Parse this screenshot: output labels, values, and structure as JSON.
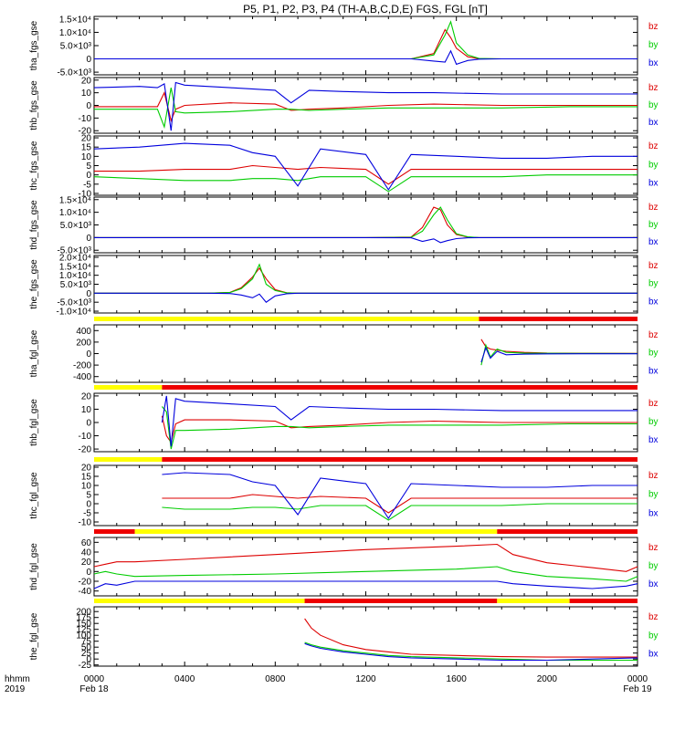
{
  "title": "P5, P1, P2, P3, P4 (TH-A,B,C,D,E) FGS, FGL [nT]",
  "colors": {
    "bx": "#0000dd",
    "by": "#00cc00",
    "bz": "#dd0000",
    "quality_good": "#ffff00",
    "quality_bad": "#ee0000"
  },
  "legend_labels": [
    "bz",
    "by",
    "bx"
  ],
  "x_axis": {
    "tick_labels": [
      "0000",
      "0400",
      "0800",
      "1200",
      "1600",
      "2000",
      "0000"
    ],
    "date_labels": [
      "Feb 18",
      "Feb 19"
    ],
    "row_label_1": "hhmm",
    "row_label_2": "2019"
  },
  "chart_data": [
    {
      "type": "line",
      "ylabel": "tha_fgs_gse",
      "ylim": [
        -6000,
        16000
      ],
      "yticks": [
        -5000,
        0,
        5000,
        10000,
        15000
      ],
      "ytick_labels": [
        "-5.0×10³",
        "0",
        "5.0×10³",
        "1.0×10⁴",
        "1.5×10⁴"
      ],
      "x": [
        0,
        4,
        8,
        12,
        14,
        15,
        15.5,
        15.75,
        16,
        16.5,
        17,
        18,
        24
      ],
      "series": [
        {
          "name": "bz",
          "values": [
            0,
            0,
            0,
            0,
            0,
            2000,
            11000,
            8000,
            4000,
            800,
            100,
            0,
            0
          ]
        },
        {
          "name": "by",
          "values": [
            0,
            0,
            0,
            0,
            0,
            1500,
            9000,
            14000,
            6000,
            1500,
            200,
            0,
            0
          ]
        },
        {
          "name": "bx",
          "values": [
            0,
            0,
            0,
            0,
            0,
            -800,
            -1200,
            3000,
            -2000,
            -600,
            -100,
            0,
            0
          ]
        }
      ]
    },
    {
      "type": "line",
      "ylabel": "thb_fgs_gse",
      "ylim": [
        -22,
        22
      ],
      "yticks": [
        -20,
        -10,
        0,
        10,
        20
      ],
      "ytick_labels": [
        "-20",
        "-10",
        "0",
        "10",
        "20"
      ],
      "x": [
        0,
        2,
        2.8,
        3.1,
        3.4,
        3.6,
        4,
        6,
        8,
        8.7,
        9.5,
        11,
        13,
        15,
        18,
        21,
        24
      ],
      "series": [
        {
          "name": "bz",
          "values": [
            -1,
            -1,
            -1,
            10,
            -12,
            -3,
            0,
            2,
            1,
            -4,
            -3,
            -2,
            0,
            1,
            0,
            0,
            0
          ]
        },
        {
          "name": "by",
          "values": [
            -3,
            -3,
            -3,
            -17,
            14,
            -5,
            -6,
            -5,
            -3,
            -3,
            -4,
            -3,
            -2,
            -2,
            -2,
            -1,
            -1
          ]
        },
        {
          "name": "bx",
          "values": [
            14,
            15,
            14,
            17,
            -20,
            18,
            16,
            14,
            12,
            2,
            12,
            11,
            10,
            10,
            9,
            9,
            9
          ]
        }
      ]
    },
    {
      "type": "line",
      "ylabel": "thc_fgs_gse",
      "ylim": [
        -11,
        21
      ],
      "yticks": [
        -10,
        -5,
        0,
        5,
        10,
        15,
        20
      ],
      "ytick_labels": [
        "-10",
        "-5",
        "0",
        "5",
        "10",
        "15",
        "20"
      ],
      "x": [
        0,
        2,
        4,
        6,
        7,
        8,
        9,
        10,
        12,
        13,
        14,
        16,
        18,
        20,
        22,
        24
      ],
      "series": [
        {
          "name": "bz",
          "values": [
            2,
            2,
            3,
            3,
            5,
            4,
            3,
            4,
            3,
            -5,
            3,
            3,
            3,
            3,
            3,
            3
          ]
        },
        {
          "name": "by",
          "values": [
            -1,
            -2,
            -3,
            -3,
            -2,
            -2,
            -3,
            -1,
            -1,
            -9,
            -1,
            -1,
            -1,
            0,
            0,
            0
          ]
        },
        {
          "name": "bx",
          "values": [
            14,
            15,
            17,
            16,
            12,
            10,
            -6,
            14,
            11,
            -8,
            11,
            10,
            9,
            9,
            10,
            10
          ]
        }
      ]
    },
    {
      "type": "line",
      "ylabel": "thd_fgs_gse",
      "ylim": [
        -6000,
        16000
      ],
      "yticks": [
        -5000,
        0,
        5000,
        10000,
        15000
      ],
      "ytick_labels": [
        "-5.0×10³",
        "0",
        "5.0×10³",
        "1.0×10⁴",
        "1.5×10⁴"
      ],
      "x": [
        0,
        4,
        8,
        12,
        14,
        14.5,
        15,
        15.3,
        15.6,
        16,
        16.5,
        17,
        24
      ],
      "series": [
        {
          "name": "bz",
          "values": [
            0,
            0,
            0,
            0,
            200,
            4000,
            12000,
            11000,
            5000,
            1200,
            200,
            0,
            0
          ]
        },
        {
          "name": "by",
          "values": [
            0,
            0,
            0,
            0,
            100,
            2500,
            9000,
            12000,
            7000,
            1500,
            300,
            0,
            0
          ]
        },
        {
          "name": "bx",
          "values": [
            0,
            0,
            0,
            0,
            -100,
            -1500,
            -500,
            -2000,
            -1200,
            -400,
            -100,
            0,
            0
          ]
        }
      ]
    },
    {
      "type": "line",
      "ylabel": "the_fgs_gse",
      "ylim": [
        -11000,
        21000
      ],
      "yticks": [
        -10000,
        -5000,
        0,
        5000,
        10000,
        15000,
        20000
      ],
      "ytick_labels": [
        "-1.0×10⁴",
        "-5.0×10³",
        "0",
        "5.0×10³",
        "1.0×10⁴",
        "1.5×10⁴",
        "2.0×10⁴"
      ],
      "x": [
        0,
        4,
        5,
        6,
        6.5,
        7,
        7.3,
        7.6,
        8,
        8.5,
        9,
        24
      ],
      "series": [
        {
          "name": "bz",
          "values": [
            0,
            0,
            0,
            500,
            3000,
            9000,
            14000,
            8000,
            2000,
            300,
            0,
            0
          ]
        },
        {
          "name": "by",
          "values": [
            0,
            0,
            0,
            400,
            2500,
            8000,
            16000,
            5000,
            1500,
            200,
            0,
            0
          ]
        },
        {
          "name": "bx",
          "values": [
            0,
            0,
            0,
            -200,
            -1000,
            -2500,
            -500,
            -5000,
            -1500,
            -300,
            0,
            0
          ]
        }
      ]
    },
    {
      "type": "line",
      "ylabel": "tha_fgl_gse",
      "ylim": [
        -500,
        500
      ],
      "yticks": [
        -400,
        -200,
        0,
        200,
        400
      ],
      "ytick_labels": [
        "-400",
        "-200",
        "0",
        "200",
        "400"
      ],
      "quality_bar": [
        {
          "from": 0,
          "to": 17,
          "status": "good"
        },
        {
          "from": 17,
          "to": 24,
          "status": "bad"
        }
      ],
      "x": [
        17.1,
        17.3,
        17.5,
        17.8,
        18.2,
        19,
        20,
        22,
        24
      ],
      "series": [
        {
          "name": "bz",
          "values": [
            250,
            120,
            80,
            60,
            40,
            20,
            10,
            5,
            3
          ]
        },
        {
          "name": "by",
          "values": [
            -200,
            150,
            -60,
            80,
            20,
            10,
            5,
            3,
            2
          ]
        },
        {
          "name": "bx",
          "values": [
            -150,
            100,
            -80,
            40,
            -20,
            -10,
            -5,
            -3,
            -3
          ]
        }
      ]
    },
    {
      "type": "line",
      "ylabel": "thb_fgl_gse",
      "ylim": [
        -22,
        22
      ],
      "yticks": [
        -20,
        -10,
        0,
        10,
        20
      ],
      "ytick_labels": [
        "-20",
        "-10",
        "0",
        "10",
        "20"
      ],
      "quality_bar": [
        {
          "from": 0,
          "to": 3,
          "status": "good"
        },
        {
          "from": 3,
          "to": 24,
          "status": "bad"
        }
      ],
      "x": [
        3.0,
        3.2,
        3.4,
        3.6,
        4,
        6,
        8,
        8.7,
        9.5,
        11,
        13,
        15,
        18,
        21,
        24
      ],
      "series": [
        {
          "name": "bz",
          "values": [
            5,
            -10,
            -15,
            -1,
            2,
            2,
            1,
            -4,
            -3,
            -2,
            0,
            1,
            0,
            0,
            0
          ]
        },
        {
          "name": "by",
          "values": [
            12,
            8,
            -20,
            -6,
            -6,
            -5,
            -3,
            -3,
            -4,
            -3,
            -2,
            -2,
            -2,
            -1,
            -1
          ]
        },
        {
          "name": "bx",
          "values": [
            0,
            20,
            -18,
            18,
            16,
            14,
            12,
            2,
            12,
            11,
            10,
            10,
            9,
            9,
            9
          ]
        }
      ]
    },
    {
      "type": "line",
      "ylabel": "thc_fgl_gse",
      "ylim": [
        -12,
        21
      ],
      "yticks": [
        -10,
        -5,
        0,
        5,
        10,
        15,
        20
      ],
      "ytick_labels": [
        "-10",
        "-5",
        "0",
        "5",
        "10",
        "15",
        "20"
      ],
      "quality_bar": [
        {
          "from": 0,
          "to": 3,
          "status": "good"
        },
        {
          "from": 3,
          "to": 24,
          "status": "bad"
        }
      ],
      "x": [
        3,
        4,
        6,
        7,
        8,
        9,
        10,
        12,
        13,
        14,
        16,
        18,
        20,
        22,
        24
      ],
      "series": [
        {
          "name": "bz",
          "values": [
            3,
            3,
            3,
            5,
            4,
            3,
            4,
            3,
            -5,
            3,
            3,
            3,
            3,
            3,
            3
          ]
        },
        {
          "name": "by",
          "values": [
            -2,
            -3,
            -3,
            -2,
            -2,
            -3,
            -1,
            -1,
            -9,
            -1,
            -1,
            -1,
            0,
            0,
            0
          ]
        },
        {
          "name": "bx",
          "values": [
            16,
            17,
            16,
            12,
            10,
            -6,
            14,
            11,
            -8,
            11,
            10,
            9,
            9,
            10,
            10
          ]
        }
      ]
    },
    {
      "type": "line",
      "ylabel": "thd_fgl_gse",
      "ylim": [
        -50,
        70
      ],
      "yticks": [
        -40,
        -20,
        0,
        20,
        40,
        60
      ],
      "ytick_labels": [
        "-40",
        "-20",
        "0",
        "20",
        "40",
        "60"
      ],
      "quality_bar": [
        {
          "from": 0,
          "to": 1.8,
          "status": "bad"
        },
        {
          "from": 1.8,
          "to": 17.8,
          "status": "good"
        },
        {
          "from": 17.8,
          "to": 24,
          "status": "bad"
        }
      ],
      "x": [
        0,
        0.5,
        1,
        1.8,
        4,
        8,
        12,
        16,
        17.8,
        18.5,
        20,
        22,
        23.5,
        24
      ],
      "series": [
        {
          "name": "bz",
          "values": [
            10,
            15,
            20,
            20,
            25,
            35,
            45,
            52,
            56,
            35,
            18,
            8,
            0,
            10
          ]
        },
        {
          "name": "by",
          "values": [
            -5,
            0,
            -5,
            -10,
            -8,
            -5,
            0,
            5,
            10,
            0,
            -10,
            -15,
            -20,
            -10
          ]
        },
        {
          "name": "bx",
          "values": [
            -35,
            -25,
            -28,
            -20,
            -20,
            -20,
            -20,
            -20,
            -20,
            -25,
            -30,
            -35,
            -30,
            -25
          ]
        }
      ]
    },
    {
      "type": "line",
      "ylabel": "the_fgl_gse",
      "ylim": [
        -30,
        220
      ],
      "yticks": [
        -25,
        0,
        25,
        50,
        75,
        100,
        125,
        150,
        175,
        200
      ],
      "ytick_labels": [
        "-25",
        "0",
        "25",
        "50",
        "75",
        "100",
        "125",
        "150",
        "175",
        "200"
      ],
      "quality_bar": [
        {
          "from": 0,
          "to": 9.3,
          "status": "good"
        },
        {
          "from": 9.3,
          "to": 17.8,
          "status": "bad"
        },
        {
          "from": 17.8,
          "to": 21,
          "status": "good"
        },
        {
          "from": 21,
          "to": 24,
          "status": "bad"
        }
      ],
      "x": [
        9.3,
        9.6,
        10,
        11,
        12,
        13,
        14,
        16,
        18,
        20,
        22,
        24
      ],
      "series": [
        {
          "name": "bz",
          "values": [
            170,
            130,
            100,
            60,
            40,
            30,
            20,
            15,
            10,
            8,
            8,
            8
          ]
        },
        {
          "name": "by",
          "values": [
            70,
            60,
            50,
            35,
            25,
            15,
            10,
            5,
            0,
            -5,
            -5,
            -5
          ]
        },
        {
          "name": "bx",
          "values": [
            65,
            55,
            45,
            30,
            20,
            10,
            5,
            0,
            -5,
            -5,
            0,
            5
          ]
        }
      ]
    }
  ]
}
